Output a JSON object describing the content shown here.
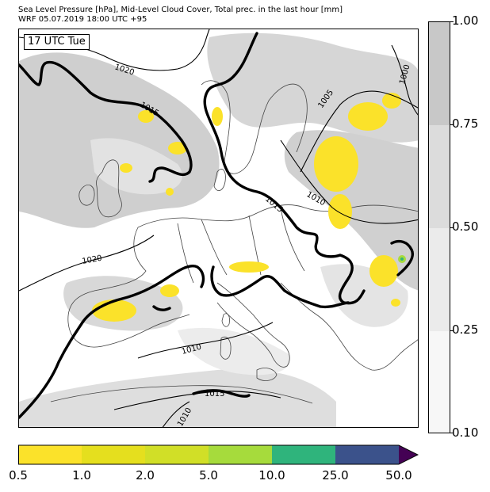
{
  "title": {
    "line1": "Sea Level Pressure [hPa], Mid-Level Cloud Cover, Total prec. in the last hour [mm]",
    "line2": "WRF 05.07.2019 18:00 UTC +95"
  },
  "time_badge": "17 UTC Tue",
  "isobar_labels": [
    "1020",
    "1015",
    "1005",
    "1000",
    "1015",
    "1010",
    "1020",
    "1010",
    "1015",
    "1010"
  ],
  "cloud_legend": {
    "ticks": [
      "1.00",
      "0.75",
      "0.50",
      "0.25",
      "0.10"
    ],
    "colors": [
      "#c8c8c8",
      "#dcdcdc",
      "#ebebeb",
      "#f7f7f7"
    ]
  },
  "precip_legend": {
    "ticks": [
      "0.5",
      "1.0",
      "2.0",
      "5.0",
      "10.0",
      "25.0",
      "50.0"
    ],
    "colors": [
      "#fbe22a",
      "#e5df1e",
      "#d1df27",
      "#a6db3c",
      "#2fb47c",
      "#3b528b",
      "#440154"
    ]
  },
  "colors": {
    "coast": "#444444",
    "isobar": "#000000",
    "cloud_high": "#c8c8c8",
    "cloud_mid": "#dcdcdc",
    "precip": "#fbe22a"
  }
}
